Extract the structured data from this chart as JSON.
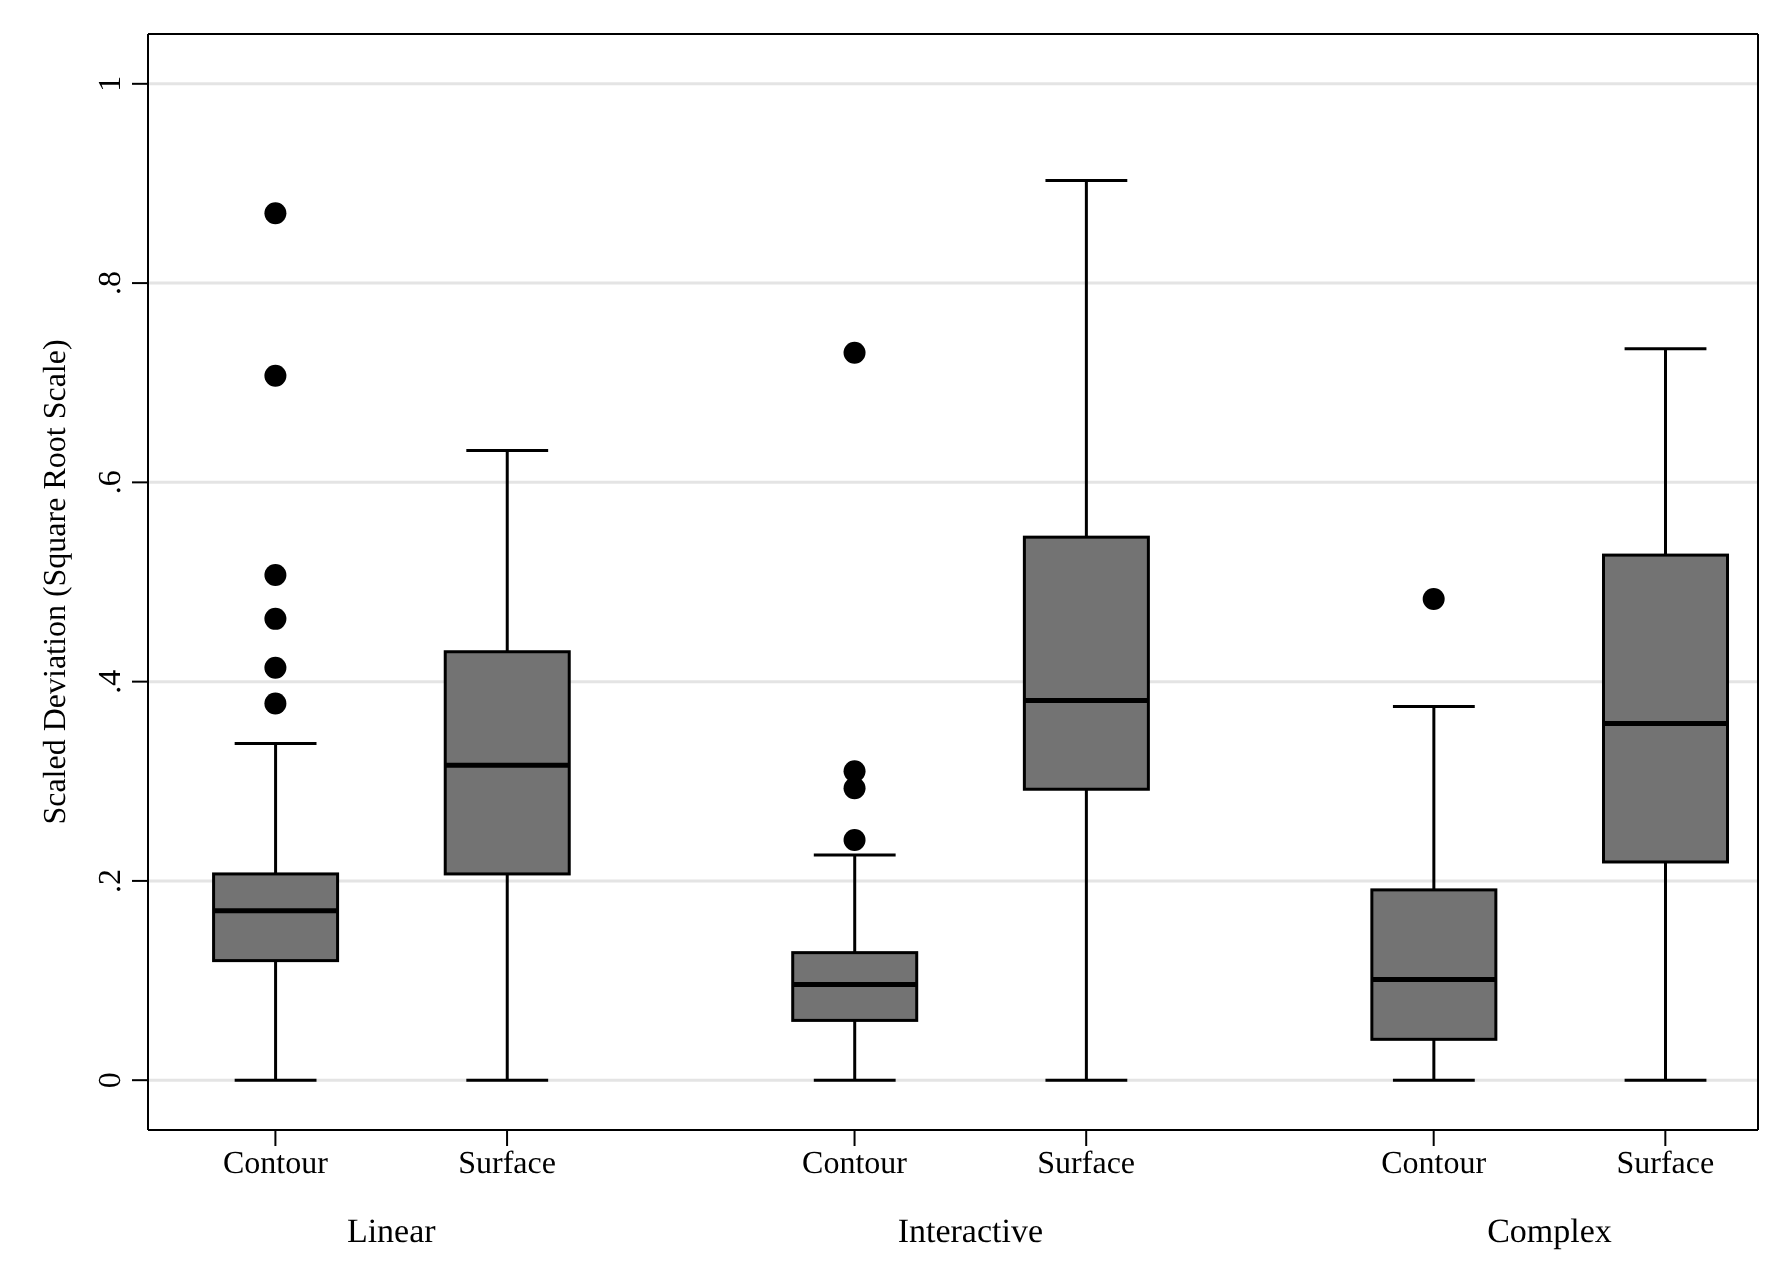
{
  "chart_data": {
    "type": "box",
    "ylabel": "Scaled Deviation (Square Root Scale)",
    "categories": [
      "Contour",
      "Surface",
      "Contour",
      "Surface",
      "Contour",
      "Surface"
    ],
    "annotations": [
      "Linear",
      "Interactive",
      "Complex"
    ],
    "ylim": [
      -0.05,
      1.05
    ],
    "yticks": [
      0,
      {
        "value": 0.2,
        "label": ".2"
      },
      {
        "value": 0.4,
        "label": ".4"
      },
      {
        "value": 0.6,
        "label": ".6"
      },
      {
        "value": 0.8,
        "label": ".8"
      },
      1
    ],
    "grid": "y",
    "series": [
      {
        "color": "#737373",
        "boxes": [
          {
            "low": 0,
            "q1": 0.12,
            "median": 0.17,
            "q3": 0.207,
            "high": 0.338,
            "outliers": [
              0.87,
              0.707,
              0.507,
              0.463,
              0.414,
              0.378
            ]
          },
          {
            "low": 0,
            "q1": 0.207,
            "median": 0.316,
            "q3": 0.43,
            "high": 0.632
          },
          {
            "low": 0,
            "q1": 0.06,
            "median": 0.096,
            "q3": 0.128,
            "high": 0.226,
            "outliers": [
              0.73,
              0.31,
              0.293,
              0.241
            ]
          },
          {
            "low": 0,
            "q1": 0.292,
            "median": 0.381,
            "q3": 0.545,
            "high": 0.903
          },
          {
            "low": 0,
            "q1": 0.041,
            "median": 0.101,
            "q3": 0.191,
            "high": 0.375,
            "outliers": [
              0.483
            ]
          },
          {
            "low": 0,
            "q1": 0.219,
            "median": 0.358,
            "q3": 0.527,
            "high": 0.734
          }
        ]
      }
    ]
  }
}
